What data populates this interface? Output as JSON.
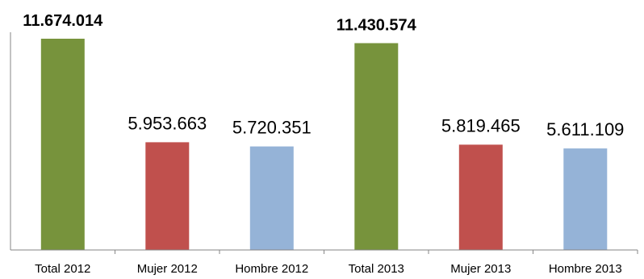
{
  "chart_data": {
    "type": "bar",
    "categories": [
      "Total 2012",
      "Mujer 2012",
      "Hombre 2012",
      "Total 2013",
      "Mujer 2013",
      "Hombre 2013"
    ],
    "values": [
      11674014,
      5953663,
      5720351,
      11430574,
      5819465,
      5611109
    ],
    "data_labels": [
      "11.674.014",
      "5.953.663",
      "5.720.351",
      "11.430.574",
      "5.819.465",
      "5.611.109"
    ],
    "bold_labels": [
      true,
      false,
      false,
      true,
      false,
      false
    ],
    "bar_colors": [
      "#77933C",
      "#C0504D",
      "#95B3D7",
      "#77933C",
      "#C0504D",
      "#95B3D7"
    ],
    "axis_color": "#868686",
    "ylim": [
      0,
      11674014
    ],
    "grid": false,
    "legend": "none",
    "title": "",
    "xlabel": "",
    "ylabel": ""
  }
}
